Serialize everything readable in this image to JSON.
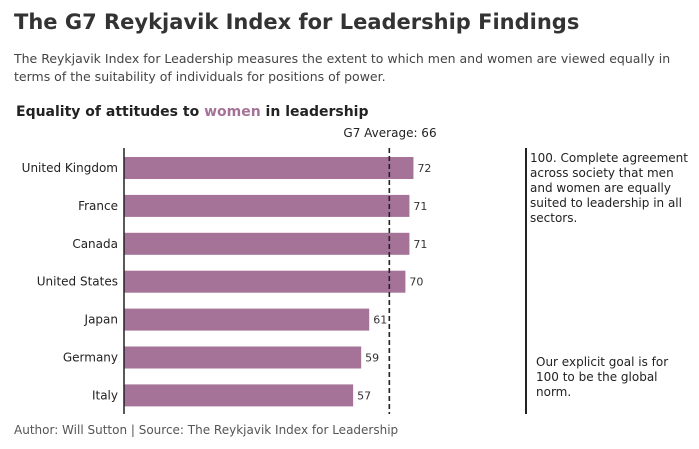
{
  "header": {
    "title": "The G7 Reykjavik Index for Leadership Findings",
    "subtitle": "The Reykjavik Index for Leadership measures the extent to which men and women are viewed equally in terms of the suitability of individuals for positions of power."
  },
  "chart_heading": {
    "prefix": "Equality of attitudes to ",
    "accent": "women",
    "suffix": " in leadership"
  },
  "average": {
    "label": "G7 Average: 66",
    "value": 66
  },
  "notes": {
    "top": "100. Complete agreement across society that men and women are equally suited to leadership in all sectors.",
    "bottom": "Our explicit goal is for 100 to be the global norm."
  },
  "footer": "Author: Will Sutton | Source: The Reykjavik Index for Leadership",
  "colors": {
    "bar": "#a57298",
    "accent": "#a57298",
    "rule": "#222222"
  },
  "chart_data": {
    "type": "bar",
    "orientation": "horizontal",
    "categories": [
      "United Kingdom",
      "France",
      "Canada",
      "United States",
      "Japan",
      "Germany",
      "Italy"
    ],
    "values": [
      72,
      71,
      71,
      70,
      61,
      59,
      57
    ],
    "reference_line": {
      "value": 66,
      "label": "G7 Average: 66",
      "style": "dashed"
    },
    "xlim": [
      0,
      100
    ],
    "grid": false,
    "title": "Equality of attitudes to women in leadership"
  }
}
